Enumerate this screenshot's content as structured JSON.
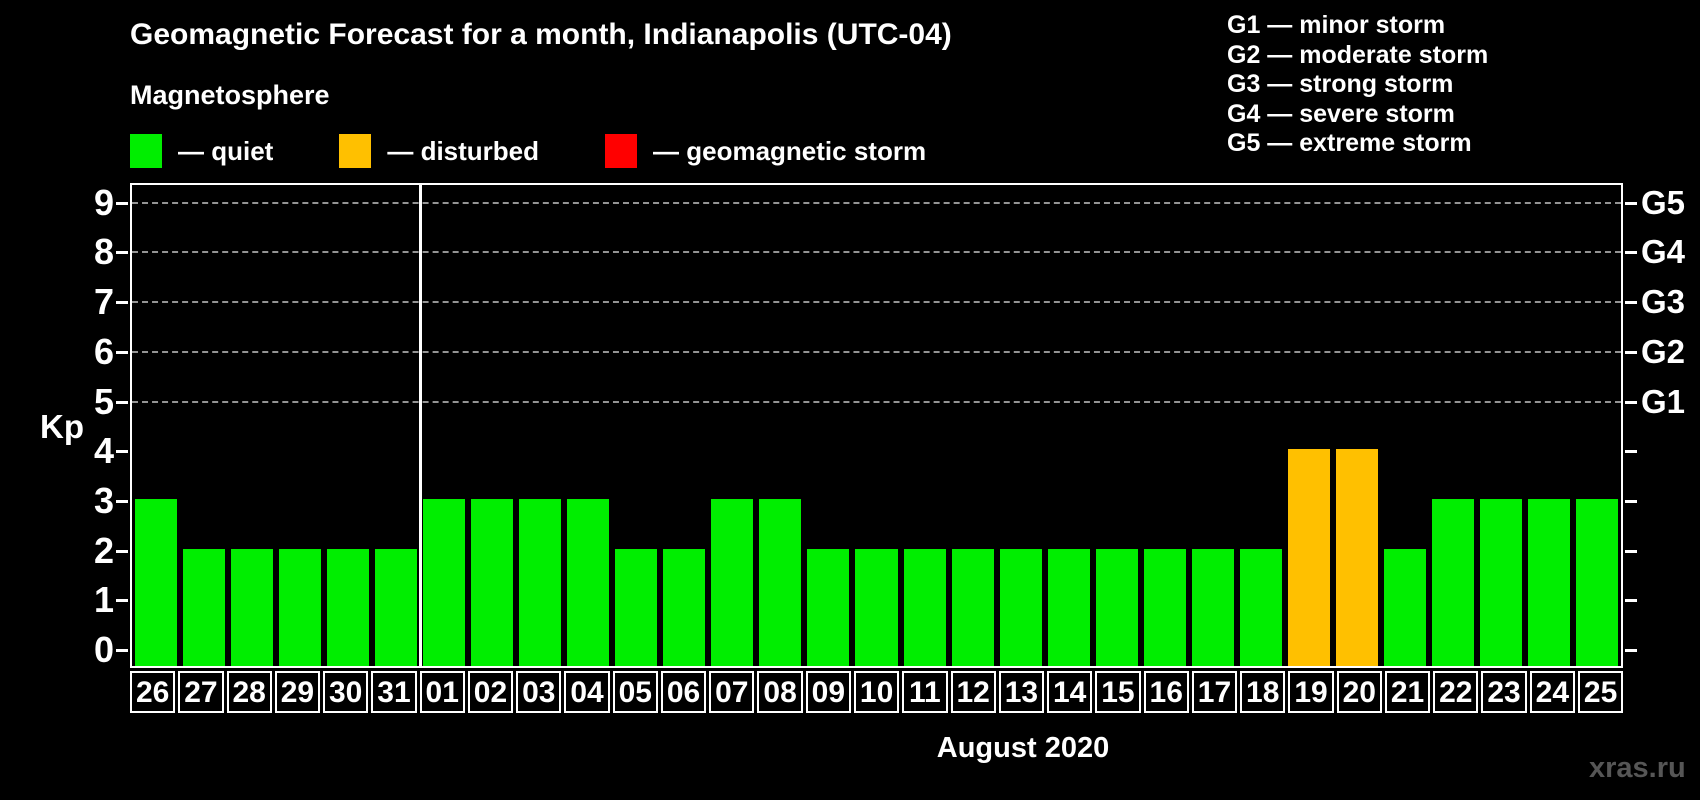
{
  "title": "Geomagnetic Forecast for a month, Indianapolis (UTC-04)",
  "legend": {
    "title": "Magnetosphere",
    "items": [
      {
        "status": "quiet",
        "label": "— quiet",
        "color": "#00ee00"
      },
      {
        "status": "disturbed",
        "label": "— disturbed",
        "color": "#ffc000"
      },
      {
        "status": "storm",
        "label": "— geomagnetic storm",
        "color": "#ff0000"
      }
    ]
  },
  "g_legend": {
    "lines": [
      "G1 — minor storm",
      "G2 — moderate storm",
      "G3 — strong storm",
      "G4 — severe storm",
      "G5 — extreme storm"
    ]
  },
  "watermark": "xras.ru",
  "chart_data": {
    "type": "bar",
    "title": "Geomagnetic Forecast for a month, Indianapolis (UTC-04)",
    "xlabel": "August 2020",
    "ylabel": "Kp",
    "ylim": [
      -0.36,
      9.36
    ],
    "yticks": [
      0,
      1,
      2,
      3,
      4,
      5,
      6,
      7,
      8,
      9
    ],
    "gridlines_at": [
      5,
      6,
      7,
      8,
      9
    ],
    "grid": "dashed",
    "legend_position": "top",
    "right_axis": [
      {
        "kp": 5,
        "label": "G1"
      },
      {
        "kp": 6,
        "label": "G2"
      },
      {
        "kp": 7,
        "label": "G3"
      },
      {
        "kp": 8,
        "label": "G4"
      },
      {
        "kp": 9,
        "label": "G5"
      }
    ],
    "month_separator_after_index": 5,
    "categories": [
      "26",
      "27",
      "28",
      "29",
      "30",
      "31",
      "01",
      "02",
      "03",
      "04",
      "05",
      "06",
      "07",
      "08",
      "09",
      "10",
      "11",
      "12",
      "13",
      "14",
      "15",
      "16",
      "17",
      "18",
      "19",
      "20",
      "21",
      "22",
      "23",
      "24",
      "25"
    ],
    "values": [
      3,
      2,
      2,
      2,
      2,
      2,
      3,
      3,
      3,
      3,
      2,
      2,
      3,
      3,
      2,
      2,
      2,
      2,
      2,
      2,
      2,
      2,
      2,
      2,
      4,
      4,
      2,
      3,
      3,
      3,
      3
    ],
    "statuses": [
      "quiet",
      "quiet",
      "quiet",
      "quiet",
      "quiet",
      "quiet",
      "quiet",
      "quiet",
      "quiet",
      "quiet",
      "quiet",
      "quiet",
      "quiet",
      "quiet",
      "quiet",
      "quiet",
      "quiet",
      "quiet",
      "quiet",
      "quiet",
      "quiet",
      "quiet",
      "quiet",
      "quiet",
      "disturbed",
      "disturbed",
      "quiet",
      "quiet",
      "quiet",
      "quiet",
      "quiet"
    ],
    "bar_colors": {
      "quiet": "#00ee00",
      "disturbed": "#ffc000",
      "storm": "#ff0000"
    }
  }
}
